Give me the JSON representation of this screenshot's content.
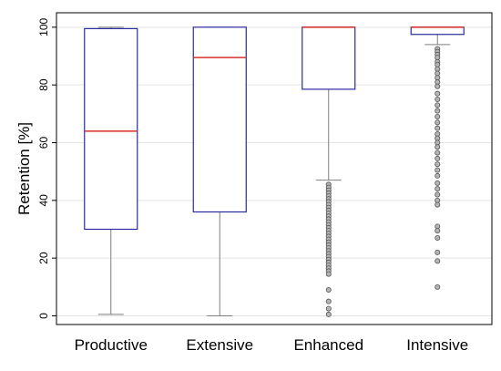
{
  "chart_data": {
    "type": "boxplot",
    "title": "",
    "xlabel": "",
    "ylabel": "Retention [%]",
    "ylim": [
      -3,
      105
    ],
    "yticks": [
      0,
      20,
      40,
      60,
      80,
      100
    ],
    "grid": true,
    "colors": {
      "box": "#2b2b9e",
      "median": "#d9312b",
      "whisker": "#7f7f7f",
      "grid": "#e3e3e3",
      "outlier": "#555555"
    },
    "categories": [
      "Productive",
      "Extensive",
      "Enhanced",
      "Intensive"
    ],
    "boxes": [
      {
        "category": "Productive",
        "min": 0.5,
        "q1": 30,
        "median": 64,
        "q3": 99.5,
        "max": 100,
        "outliers": []
      },
      {
        "category": "Extensive",
        "min": 0,
        "q1": 36,
        "median": 89.5,
        "q3": 100,
        "max": 100,
        "outliers": []
      },
      {
        "category": "Enhanced",
        "min": 47,
        "q1": 78.5,
        "median": 100,
        "q3": 100,
        "max": 100,
        "outliers": [
          45.5,
          44.5,
          43.5,
          42.5,
          41.5,
          40.5,
          39.5,
          38.5,
          37.5,
          36.5,
          35.5,
          34.5,
          33.5,
          32.5,
          31.5,
          30.5,
          29.5,
          28.5,
          27.5,
          26.5,
          25.5,
          24.5,
          23.5,
          22.5,
          21.5,
          20.5,
          19.5,
          18.5,
          17.5,
          16.5,
          15.5,
          14.5,
          9,
          5,
          2.5,
          0.5
        ]
      },
      {
        "category": "Intensive",
        "min": 94,
        "q1": 97.5,
        "median": 100,
        "q3": 100,
        "max": 100,
        "outliers": [
          92.5,
          91.5,
          90.5,
          89.5,
          88,
          87,
          85.5,
          84,
          82.5,
          81,
          79.5,
          77,
          75,
          73,
          71,
          69,
          67,
          65,
          63,
          61.5,
          60,
          58.5,
          56.5,
          54.5,
          52.5,
          50.5,
          48.5,
          46,
          44,
          42,
          40,
          38.5,
          31,
          29.5,
          27,
          22,
          19,
          10
        ]
      }
    ]
  }
}
